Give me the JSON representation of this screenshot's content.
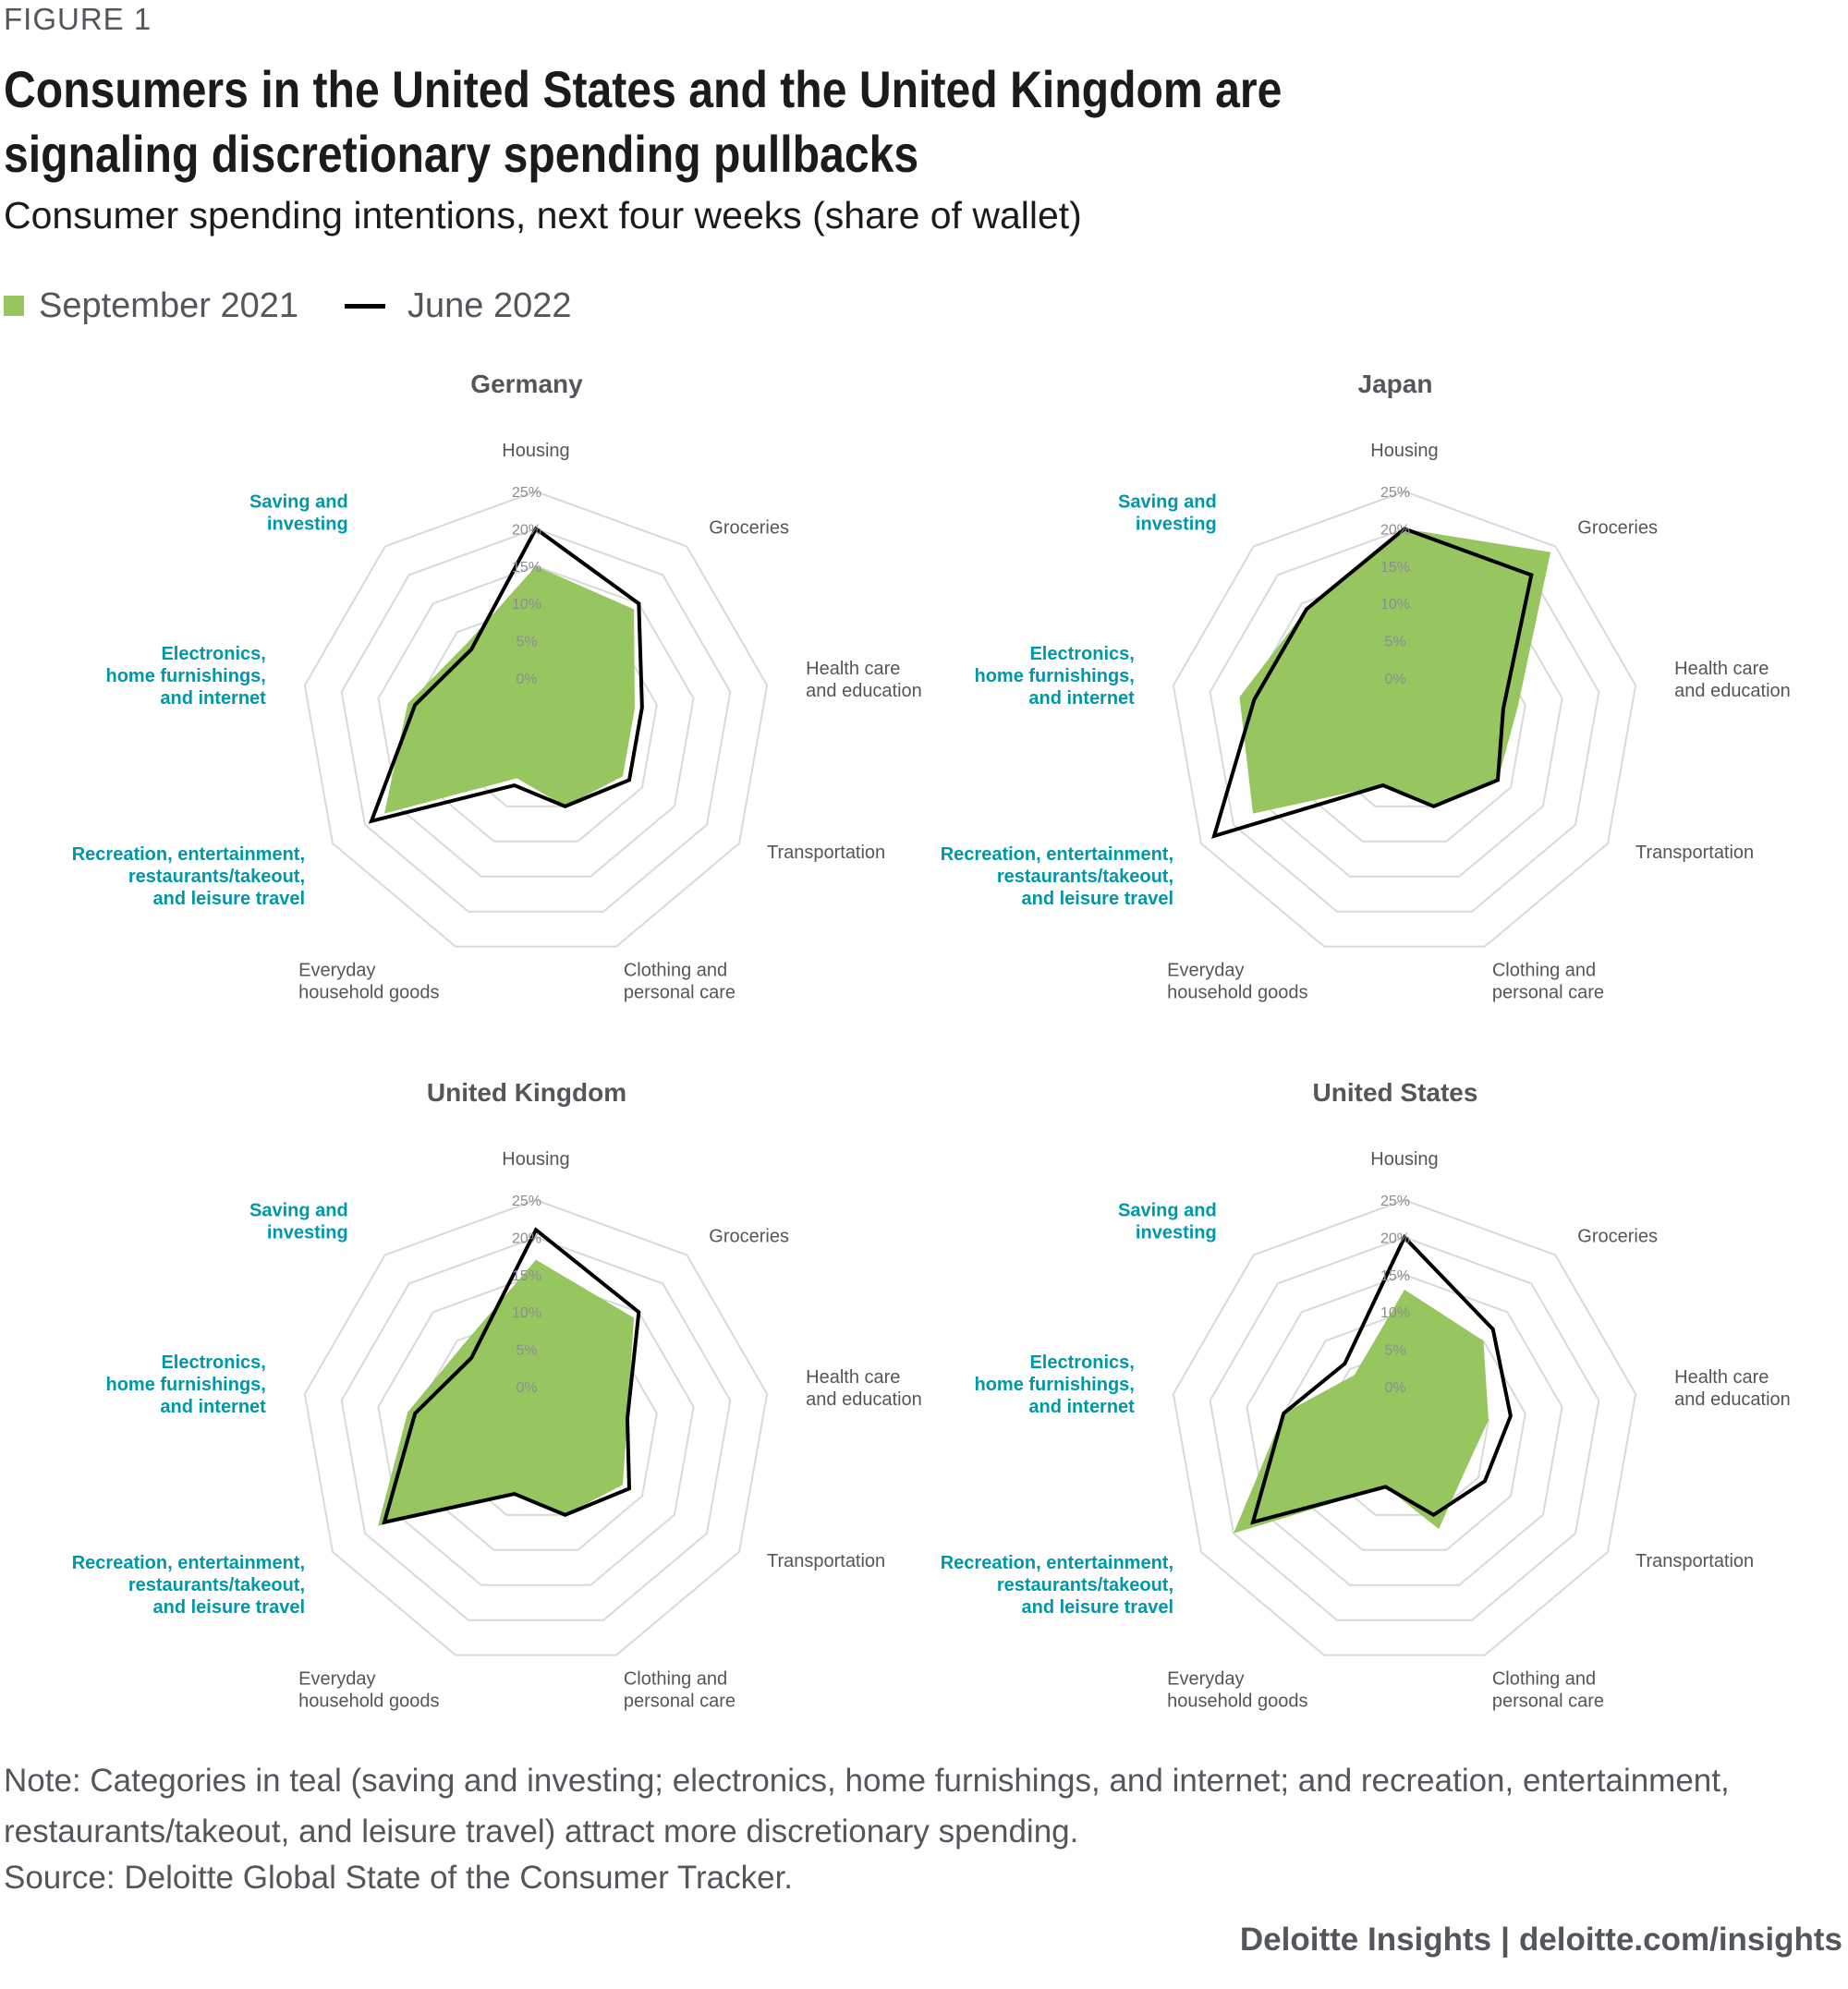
{
  "header": {
    "figure_label": "FIGURE 1",
    "title": "Consumers in the United States and the United Kingdom are signaling discretionary spending pullbacks",
    "subtitle": "Consumer spending intentions, next four weeks (share of wallet)"
  },
  "legend": {
    "series_a": "September 2021",
    "series_b": "June 2022"
  },
  "colors": {
    "sept2021_fill": "#97c661",
    "june2022_line": "#000000",
    "grid": "#d9d9d9",
    "teal_label": "#0097a9",
    "label_gray": "#53565a"
  },
  "chart_data": [
    {
      "type": "radar",
      "title": "Germany",
      "axes": [
        "Housing",
        "Groceries",
        "Health care and education",
        "Transportation",
        "Clothing and personal care",
        "Everyday household goods",
        "Recreation, entertainment, restaurants/takeout, and leisure travel",
        "Electronics, home furnishings, and internet",
        "Saving and investing"
      ],
      "discretionary_axes": [
        "Recreation, entertainment, restaurants/takeout, and leisure travel",
        "Electronics, home furnishings, and internet",
        "Saving and investing"
      ],
      "ticks": [
        "0%",
        "5%",
        "10%",
        "15%",
        "20%",
        "25%"
      ],
      "rlim": [
        0,
        25
      ],
      "series": [
        {
          "name": "September 2021",
          "values": [
            15,
            14,
            7,
            7,
            5,
            1,
            17,
            11,
            8
          ]
        },
        {
          "name": "June 2022",
          "values": [
            20,
            15,
            8,
            8,
            5,
            2,
            19,
            10,
            7
          ]
        }
      ]
    },
    {
      "type": "radar",
      "title": "Japan",
      "axes": [
        "Housing",
        "Groceries",
        "Health care and education",
        "Transportation",
        "Clothing and personal care",
        "Everyday household goods",
        "Recreation, entertainment, restaurants/takeout, and leisure travel",
        "Electronics, home furnishings, and internet",
        "Saving and investing"
      ],
      "discretionary_axes": [
        "Recreation, entertainment, restaurants/takeout, and leisure travel",
        "Electronics, home furnishings, and internet",
        "Saving and investing"
      ],
      "ticks": [
        "0%",
        "5%",
        "10%",
        "15%",
        "20%",
        "25%"
      ],
      "rlim": [
        0,
        25
      ],
      "series": [
        {
          "name": "September 2021",
          "values": [
            20,
            24,
            9,
            8,
            5,
            2,
            17,
            16,
            14
          ]
        },
        {
          "name": "June 2022",
          "values": [
            20,
            20,
            7,
            8,
            5,
            2,
            23,
            14,
            14
          ]
        }
      ]
    },
    {
      "type": "radar",
      "title": "United Kingdom",
      "axes": [
        "Housing",
        "Groceries",
        "Health care and education",
        "Transportation",
        "Clothing and personal care",
        "Everyday household goods",
        "Recreation, entertainment, restaurants/takeout, and leisure travel",
        "Electronics, home furnishings, and internet",
        "Saving and investing"
      ],
      "discretionary_axes": [
        "Recreation, entertainment, restaurants/takeout, and leisure travel",
        "Electronics, home furnishings, and internet",
        "Saving and investing"
      ],
      "ticks": [
        "0%",
        "5%",
        "10%",
        "15%",
        "20%",
        "25%"
      ],
      "rlim": [
        0,
        25
      ],
      "series": [
        {
          "name": "September 2021",
          "values": [
            17,
            14,
            6,
            7,
            5,
            2,
            18,
            11,
            9
          ]
        },
        {
          "name": "June 2022",
          "values": [
            21,
            15,
            6,
            8,
            5,
            2,
            17,
            10,
            7
          ]
        }
      ]
    },
    {
      "type": "radar",
      "title": "United States",
      "axes": [
        "Housing",
        "Groceries",
        "Health care and education",
        "Transportation",
        "Clothing and personal care",
        "Everyday household goods",
        "Recreation, entertainment, restaurants/takeout, and leisure travel",
        "Electronics, home furnishings, and internet",
        "Saving and investing"
      ],
      "discretionary_axes": [
        "Recreation, entertainment, restaurants/takeout, and leisure travel",
        "Electronics, home furnishings, and internet",
        "Saving and investing"
      ],
      "ticks": [
        "0%",
        "5%",
        "10%",
        "15%",
        "20%",
        "25%"
      ],
      "rlim": [
        0,
        25
      ],
      "series": [
        {
          "name": "September 2021",
          "values": [
            13,
            10,
            5,
            3,
            7,
            1,
            20,
            10,
            4
          ]
        },
        {
          "name": "June 2022",
          "values": [
            20,
            12,
            8,
            6,
            5,
            1,
            17,
            10,
            6
          ]
        }
      ]
    }
  ],
  "notes": {
    "note": "Note: Categories in teal (saving and investing; electronics, home furnishings, and internet; and recreation, entertainment, restaurants/takeout, and leisure travel) attract more discretionary spending.",
    "source": "Source: Deloitte Global State of the Consumer Tracker."
  },
  "footer": {
    "brand": "Deloitte Insights",
    "separator": "|",
    "url": "deloitte.com/insights"
  }
}
